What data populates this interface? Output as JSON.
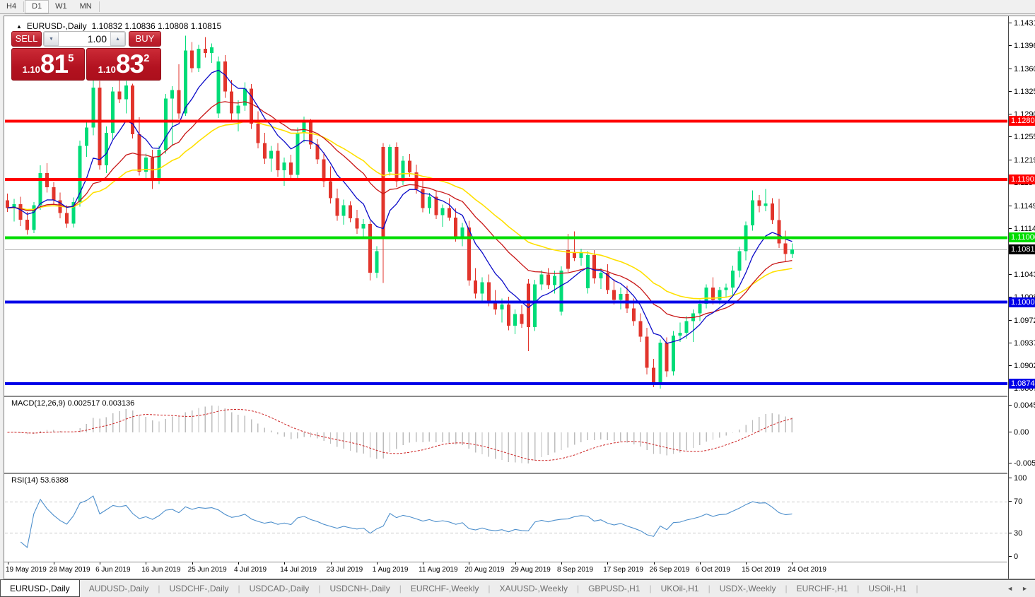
{
  "app": {
    "toolbar": {
      "timeframes": [
        {
          "label": "H4",
          "active": false
        },
        {
          "label": "D1",
          "active": true
        },
        {
          "label": "W1",
          "active": false
        },
        {
          "label": "MN",
          "active": false
        }
      ]
    }
  },
  "chart": {
    "title": {
      "symbol": "EURUSD-,Daily",
      "ohlc_text": "1.10832 1.10836 1.10808 1.10815"
    },
    "trade_panel": {
      "sell_label": "SELL",
      "buy_label": "BUY",
      "volume": "1.00",
      "down_arrow": "▼",
      "up_arrow": "▲",
      "sell_price": {
        "prefix": "1.10",
        "main": "81",
        "sup": "5"
      },
      "buy_price": {
        "prefix": "1.10",
        "main": "83",
        "sup": "2"
      }
    },
    "price_axis_ticks": [
      "1.14310",
      "1.13960",
      "1.13600",
      "1.13250",
      "1.12900",
      "1.12550",
      "1.12190",
      "1.11840",
      "1.11490",
      "1.11140",
      "1.10430",
      "1.10080",
      "1.09720",
      "1.09370",
      "1.09020",
      "1.08670"
    ],
    "current_price": {
      "value": 1.10815,
      "label": "1.10815"
    }
  },
  "chart_data": {
    "type": "candlestick",
    "symbol": "EURUSD-",
    "timeframe": "Daily",
    "date_ticks": [
      "19 May 2019",
      "28 May 2019",
      "6 Jun 2019",
      "16 Jun 2019",
      "25 Jun 2019",
      "4 Jul 2019",
      "14 Jul 2019",
      "23 Jul 2019",
      "1 Aug 2019",
      "11 Aug 2019",
      "20 Aug 2019",
      "29 Aug 2019",
      "8 Sep 2019",
      "17 Sep 2019",
      "26 Sep 2019",
      "6 Oct 2019",
      "15 Oct 2019",
      "24 Oct 2019"
    ],
    "bars_per_tick": 7,
    "price_range": {
      "top_tick": 1.1431,
      "bottom_tick": 1.0867
    },
    "levels": [
      {
        "price": 1.12801,
        "label": "1.12801",
        "color": "level_red",
        "width": 4
      },
      {
        "price": 1.11901,
        "label": "1.11901",
        "color": "level_red",
        "width": 4
      },
      {
        "price": 1.11,
        "label": "1.11000",
        "color": "level_green",
        "width": 4
      },
      {
        "price": 1.10006,
        "label": "1.10006",
        "color": "level_blue",
        "width": 4
      },
      {
        "price": 1.08747,
        "label": "1.08747",
        "color": "level_blue",
        "width": 4
      }
    ],
    "moving_averages": [
      {
        "period": 8,
        "color": "ma_fast"
      },
      {
        "period": 20,
        "color": "ma_mid"
      },
      {
        "period": 34,
        "color": "ma_slow"
      }
    ],
    "ohlc": [
      [
        1.1158,
        1.1168,
        1.114,
        1.1146
      ],
      [
        1.1146,
        1.116,
        1.1125,
        1.1152
      ],
      [
        1.1152,
        1.1163,
        1.1118,
        1.1128
      ],
      [
        1.1128,
        1.114,
        1.1105,
        1.1112
      ],
      [
        1.1112,
        1.1155,
        1.1107,
        1.115
      ],
      [
        1.115,
        1.1212,
        1.1143,
        1.12
      ],
      [
        1.12,
        1.1215,
        1.117,
        1.1178
      ],
      [
        1.1178,
        1.1186,
        1.1152,
        1.1158
      ],
      [
        1.1158,
        1.117,
        1.113,
        1.1138
      ],
      [
        1.1138,
        1.115,
        1.1115,
        1.1122
      ],
      [
        1.1122,
        1.1162,
        1.1116,
        1.1155
      ],
      [
        1.1155,
        1.125,
        1.1148,
        1.1242
      ],
      [
        1.1242,
        1.1282,
        1.1225,
        1.127
      ],
      [
        1.127,
        1.1345,
        1.1258,
        1.1332
      ],
      [
        1.1332,
        1.1342,
        1.1205,
        1.1212
      ],
      [
        1.1212,
        1.1272,
        1.12,
        1.1262
      ],
      [
        1.1262,
        1.1333,
        1.1252,
        1.1326
      ],
      [
        1.1326,
        1.1344,
        1.1308,
        1.1314
      ],
      [
        1.1314,
        1.1342,
        1.1292,
        1.1335
      ],
      [
        1.1335,
        1.1338,
        1.1253,
        1.126
      ],
      [
        1.126,
        1.1286,
        1.1196,
        1.1202
      ],
      [
        1.1202,
        1.123,
        1.1188,
        1.1224
      ],
      [
        1.1224,
        1.1236,
        1.1175,
        1.1192
      ],
      [
        1.1192,
        1.1242,
        1.1183,
        1.1236
      ],
      [
        1.1236,
        1.1322,
        1.123,
        1.1315
      ],
      [
        1.1315,
        1.1334,
        1.1242,
        1.1328
      ],
      [
        1.1328,
        1.1368,
        1.1284,
        1.1292
      ],
      [
        1.1292,
        1.1412,
        1.1288,
        1.1389
      ],
      [
        1.1389,
        1.1402,
        1.1355,
        1.1362
      ],
      [
        1.1362,
        1.1398,
        1.1356,
        1.1392
      ],
      [
        1.1392,
        1.141,
        1.1378,
        1.1385
      ],
      [
        1.1385,
        1.14,
        1.137,
        1.1394
      ],
      [
        1.1292,
        1.138,
        1.1285,
        1.1372
      ],
      [
        1.1372,
        1.1382,
        1.1316,
        1.1326
      ],
      [
        1.1326,
        1.1344,
        1.1282,
        1.1292
      ],
      [
        1.1292,
        1.1312,
        1.1264,
        1.1304
      ],
      [
        1.1304,
        1.134,
        1.1296,
        1.133
      ],
      [
        1.133,
        1.1337,
        1.1268,
        1.1276
      ],
      [
        1.1276,
        1.1295,
        1.1238,
        1.1246
      ],
      [
        1.1246,
        1.1262,
        1.1214,
        1.1222
      ],
      [
        1.1222,
        1.1242,
        1.1202,
        1.1234
      ],
      [
        1.1234,
        1.1246,
        1.1194,
        1.1204
      ],
      [
        1.1204,
        1.1224,
        1.118,
        1.1216
      ],
      [
        1.1216,
        1.1228,
        1.119,
        1.1197
      ],
      [
        1.1197,
        1.127,
        1.1192,
        1.1262
      ],
      [
        1.1262,
        1.1287,
        1.1247,
        1.1278
      ],
      [
        1.1278,
        1.1283,
        1.1237,
        1.1244
      ],
      [
        1.1244,
        1.1252,
        1.1214,
        1.1221
      ],
      [
        1.1221,
        1.1232,
        1.1178,
        1.1187
      ],
      [
        1.1187,
        1.121,
        1.1153,
        1.1161
      ],
      [
        1.1161,
        1.1176,
        1.1126,
        1.1134
      ],
      [
        1.1134,
        1.1159,
        1.112,
        1.115
      ],
      [
        1.115,
        1.1156,
        1.1124,
        1.113
      ],
      [
        1.113,
        1.1143,
        1.1106,
        1.1114
      ],
      [
        1.1114,
        1.1129,
        1.11,
        1.1121
      ],
      [
        1.1121,
        1.1126,
        1.1034,
        1.1046
      ],
      [
        1.1046,
        1.1087,
        1.1038,
        1.1079
      ],
      [
        1.124,
        1.1246,
        1.103,
        1.1102
      ],
      [
        1.1202,
        1.1244,
        1.1196,
        1.124
      ],
      [
        1.124,
        1.1247,
        1.1178,
        1.1187
      ],
      [
        1.1187,
        1.1226,
        1.1181,
        1.1219
      ],
      [
        1.1219,
        1.1229,
        1.1194,
        1.1201
      ],
      [
        1.1201,
        1.1213,
        1.1168,
        1.1175
      ],
      [
        1.1175,
        1.1191,
        1.1139,
        1.1146
      ],
      [
        1.1146,
        1.1169,
        1.1137,
        1.1163
      ],
      [
        1.1163,
        1.1173,
        1.1129,
        1.1135
      ],
      [
        1.1135,
        1.1151,
        1.1117,
        1.1146
      ],
      [
        1.1146,
        1.1161,
        1.1126,
        1.1131
      ],
      [
        1.1131,
        1.1145,
        1.1094,
        1.1101
      ],
      [
        1.1101,
        1.1123,
        1.1087,
        1.1116
      ],
      [
        1.1116,
        1.1126,
        1.1026,
        1.1034
      ],
      [
        1.1034,
        1.1053,
        1.1006,
        1.1014
      ],
      [
        1.1014,
        1.1039,
        1.1001,
        1.1031
      ],
      [
        1.1031,
        1.1043,
        1.0994,
        1.1001
      ],
      [
        1.1001,
        1.1019,
        1.0981,
        1.0989
      ],
      [
        1.0989,
        1.1006,
        1.0969,
        1.0997
      ],
      [
        1.0997,
        1.1009,
        1.0957,
        1.0964
      ],
      [
        1.0964,
        1.0989,
        1.0951,
        1.0982
      ],
      [
        1.0982,
        1.0996,
        1.0961,
        1.0967
      ],
      [
        1.1029,
        1.1036,
        1.0925,
        1.0962
      ],
      [
        1.0962,
        1.1035,
        1.0956,
        1.1028
      ],
      [
        1.1028,
        1.105,
        1.1019,
        1.1043
      ],
      [
        1.1043,
        1.1053,
        1.1021,
        1.1027
      ],
      [
        1.1027,
        1.1049,
        1.1014,
        1.1041
      ],
      [
        1.0986,
        1.1056,
        1.098,
        1.1049
      ],
      [
        1.1081,
        1.1106,
        1.1047,
        1.1052
      ],
      [
        1.1078,
        1.111,
        1.1064,
        1.1069
      ],
      [
        1.1069,
        1.1083,
        1.1057,
        1.1077
      ],
      [
        1.1022,
        1.1079,
        1.1014,
        1.1073
      ],
      [
        1.1073,
        1.1081,
        1.1029,
        1.1037
      ],
      [
        1.1037,
        1.1053,
        1.1021,
        1.1046
      ],
      [
        1.1046,
        1.1059,
        1.1013,
        1.1019
      ],
      [
        1.1019,
        1.1036,
        1.0997,
        1.1004
      ],
      [
        1.1004,
        1.1023,
        1.0989,
        1.1013
      ],
      [
        1.1013,
        1.1026,
        1.0984,
        1.0991
      ],
      [
        1.0991,
        1.1006,
        1.0964,
        1.0971
      ],
      [
        1.0971,
        1.0983,
        1.0939,
        1.0947
      ],
      [
        1.0947,
        1.0961,
        1.0889,
        1.0899
      ],
      [
        1.0899,
        1.0913,
        1.0869,
        1.0875
      ],
      [
        1.0875,
        1.0943,
        1.0867,
        1.0938
      ],
      [
        1.0938,
        1.0946,
        1.0885,
        1.0894
      ],
      [
        1.0894,
        1.0956,
        1.0887,
        1.0949
      ],
      [
        1.0949,
        1.0969,
        1.0939,
        1.0953
      ],
      [
        1.0953,
        1.0979,
        1.0944,
        1.0971
      ],
      [
        1.0971,
        1.0989,
        1.0939,
        1.0983
      ],
      [
        1.0983,
        1.1004,
        1.0971,
        1.0998
      ],
      [
        1.0998,
        1.1028,
        1.0991,
        1.1023
      ],
      [
        1.1023,
        1.1039,
        1.0997,
        1.1004
      ],
      [
        1.1004,
        1.1024,
        1.0997,
        1.1019
      ],
      [
        1.1019,
        1.1029,
        1.1007,
        1.1023
      ],
      [
        1.1023,
        1.1057,
        1.1011,
        1.1049
      ],
      [
        1.1049,
        1.1086,
        1.1039,
        1.1079
      ],
      [
        1.1079,
        1.1125,
        1.1065,
        1.1119
      ],
      [
        1.1119,
        1.1173,
        1.1111,
        1.1158
      ],
      [
        1.1158,
        1.1166,
        1.1139,
        1.1149
      ],
      [
        1.1149,
        1.1175,
        1.1141,
        1.1153
      ],
      [
        1.1153,
        1.1161,
        1.1121,
        1.1127
      ],
      [
        1.1127,
        1.116,
        1.1084,
        1.1091
      ],
      [
        1.1091,
        1.1111,
        1.1063,
        1.1075
      ],
      [
        1.1075,
        1.1091,
        1.1069,
        1.1082
      ]
    ]
  },
  "indicators": {
    "macd": {
      "name": "MACD(12,26,9)",
      "values_text": "0.002517 0.003136",
      "fast": 12,
      "slow": 26,
      "signal": 9,
      "axis_labels": [
        "0.004536",
        "0.00",
        "-0.005205"
      ]
    },
    "rsi": {
      "name": "RSI(14)",
      "value": "53.6388",
      "period": 14,
      "levels": [
        70,
        30
      ],
      "axis_labels": [
        "100",
        "70",
        "30",
        "0"
      ]
    }
  },
  "bottom_tabs": {
    "tabs": [
      {
        "label": "EURUSD-,Daily",
        "active": true
      },
      {
        "label": "AUDUSD-,Daily",
        "active": false
      },
      {
        "label": "USDCHF-,Daily",
        "active": false
      },
      {
        "label": "USDCAD-,Daily",
        "active": false
      },
      {
        "label": "USDCNH-,Daily",
        "active": false
      },
      {
        "label": "EURCHF-,Weekly",
        "active": false
      },
      {
        "label": "XAUUSD-,Weekly",
        "active": false
      },
      {
        "label": "GBPUSD-,H1",
        "active": false
      },
      {
        "label": "UKOil-,H1",
        "active": false
      },
      {
        "label": "USDX-,Weekly",
        "active": false
      },
      {
        "label": "EURCHF-,H1",
        "active": false
      },
      {
        "label": "USOil-,H1",
        "active": false
      }
    ],
    "nav_left": "◄",
    "nav_right": "►"
  },
  "colors": {
    "bull": "#00dc78",
    "bear": "#e2352c",
    "level_red": "#ff0000",
    "level_green": "#00dd00",
    "level_blue": "#0000e8",
    "current_line": "#b8b8b8",
    "current_label_bg": "#000000",
    "ma_fast": "#0a0ac8",
    "ma_mid": "#c81616",
    "ma_slow": "#ffe000",
    "macd_hist": "#bdbdbd",
    "macd_signal": "#cc2222",
    "rsi_line": "#4d8fcc"
  }
}
